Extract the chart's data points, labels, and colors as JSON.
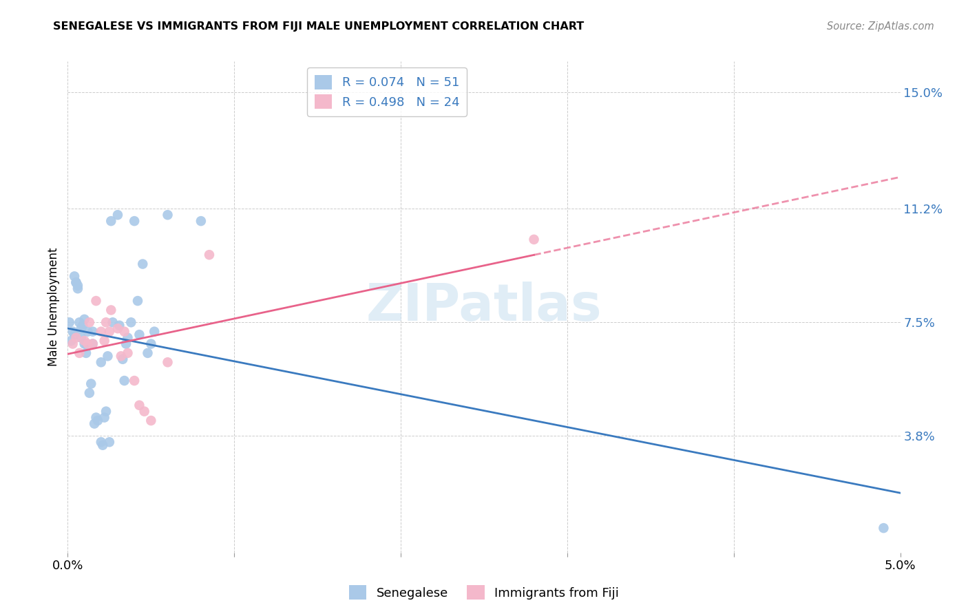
{
  "title": "SENEGALESE VS IMMIGRANTS FROM FIJI MALE UNEMPLOYMENT CORRELATION CHART",
  "source": "Source: ZipAtlas.com",
  "ylabel": "Male Unemployment",
  "xlim": [
    0.0,
    0.05
  ],
  "ylim": [
    0.0,
    0.16
  ],
  "xticks": [
    0.0,
    0.01,
    0.02,
    0.03,
    0.04,
    0.05
  ],
  "xticklabels": [
    "0.0%",
    "",
    "",
    "",
    "",
    "5.0%"
  ],
  "ytick_positions": [
    0.038,
    0.075,
    0.112,
    0.15
  ],
  "ytick_labels": [
    "3.8%",
    "7.5%",
    "11.2%",
    "15.0%"
  ],
  "R_blue": 0.074,
  "N_blue": 51,
  "R_pink": 0.498,
  "N_pink": 24,
  "blue_color": "#aac9e8",
  "pink_color": "#f4b8cb",
  "blue_line_color": "#3a7abf",
  "pink_line_color": "#e8628a",
  "watermark_color": "#c8dff0",
  "legend_label_blue": "Senegalese",
  "legend_label_pink": "Immigrants from Fiji",
  "blue_scatter_x": [
    0.0001,
    0.0002,
    0.0003,
    0.0004,
    0.0004,
    0.0005,
    0.0005,
    0.0006,
    0.0006,
    0.0007,
    0.0008,
    0.0008,
    0.0009,
    0.001,
    0.001,
    0.0011,
    0.0011,
    0.0012,
    0.0013,
    0.0014,
    0.0015,
    0.0015,
    0.0016,
    0.0017,
    0.0018,
    0.002,
    0.002,
    0.0021,
    0.0022,
    0.0023,
    0.0024,
    0.0025,
    0.0026,
    0.0027,
    0.003,
    0.0031,
    0.0033,
    0.0034,
    0.0035,
    0.0036,
    0.0038,
    0.004,
    0.0042,
    0.0043,
    0.0045,
    0.0048,
    0.005,
    0.0052,
    0.006,
    0.008,
    0.049
  ],
  "blue_scatter_y": [
    0.075,
    0.069,
    0.072,
    0.071,
    0.09,
    0.088,
    0.088,
    0.086,
    0.087,
    0.075,
    0.073,
    0.07,
    0.074,
    0.076,
    0.068,
    0.065,
    0.068,
    0.072,
    0.052,
    0.055,
    0.072,
    0.068,
    0.042,
    0.044,
    0.043,
    0.062,
    0.036,
    0.035,
    0.044,
    0.046,
    0.064,
    0.036,
    0.108,
    0.075,
    0.11,
    0.074,
    0.063,
    0.056,
    0.068,
    0.07,
    0.075,
    0.108,
    0.082,
    0.071,
    0.094,
    0.065,
    0.068,
    0.072,
    0.11,
    0.108,
    0.008
  ],
  "pink_scatter_x": [
    0.0003,
    0.0005,
    0.0007,
    0.001,
    0.0012,
    0.0013,
    0.0015,
    0.0017,
    0.002,
    0.0022,
    0.0023,
    0.0025,
    0.0026,
    0.003,
    0.0032,
    0.0034,
    0.0036,
    0.004,
    0.0043,
    0.0046,
    0.005,
    0.006,
    0.0085,
    0.028
  ],
  "pink_scatter_y": [
    0.068,
    0.07,
    0.065,
    0.069,
    0.068,
    0.075,
    0.068,
    0.082,
    0.072,
    0.069,
    0.075,
    0.072,
    0.079,
    0.073,
    0.064,
    0.072,
    0.065,
    0.056,
    0.048,
    0.046,
    0.043,
    0.062,
    0.097,
    0.102
  ],
  "background_color": "#ffffff",
  "grid_color": "#cccccc"
}
